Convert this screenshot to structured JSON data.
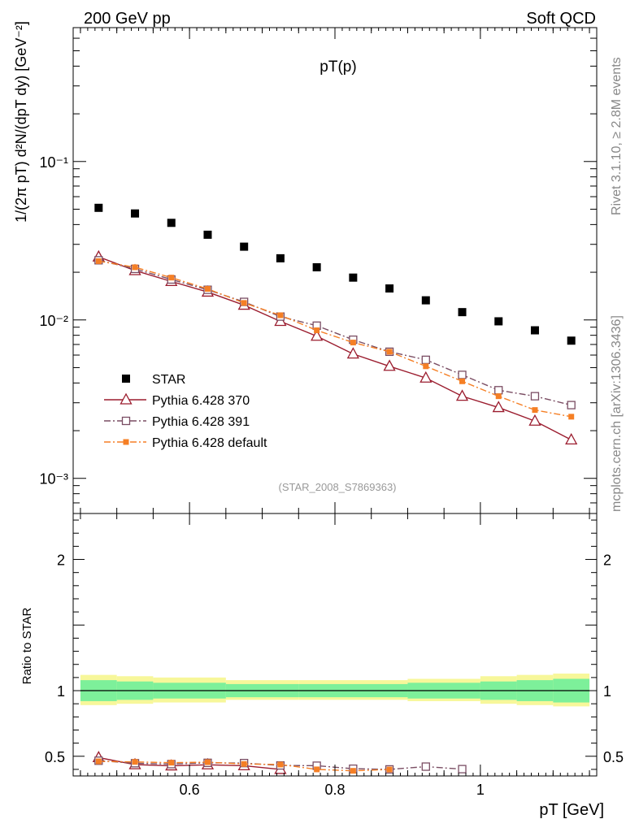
{
  "header": {
    "left": "200 GeV pp",
    "right": "Soft QCD"
  },
  "side": {
    "rivet": "Rivet 3.1.10, ≥ 2.8M events",
    "mcplots": "mcplots.cern.ch [arXiv:1306.3436]"
  },
  "colors": {
    "star": "#000000",
    "p370": "#9b1c2e",
    "p391": "#7a4d63",
    "pdef": "#f57f25",
    "band_inner": "#7df09a",
    "band_outer": "#f7f79a"
  },
  "chart_data": [
    {
      "type": "scatter",
      "title": "pT(p)",
      "annotation": "(STAR_2008_S7869363)",
      "ylabel": "1/(2π pT) d²N/(dpT dy) [GeV⁻²]",
      "xlabel": "pT [GeV]",
      "xlim": [
        0.44,
        1.16
      ],
      "ylim": [
        0.0006,
        0.7
      ],
      "yscale": "log",
      "ytick_labels": [
        "10⁻³",
        "10⁻²",
        "10⁻¹"
      ],
      "legend": "middle-left",
      "x": [
        0.475,
        0.525,
        0.575,
        0.625,
        0.675,
        0.725,
        0.775,
        0.825,
        0.875,
        0.925,
        0.975,
        1.025,
        1.075,
        1.125
      ],
      "series": [
        {
          "name": "STAR",
          "marker": "square-filled",
          "color_key": "star",
          "values": [
            0.051,
            0.047,
            0.041,
            0.0345,
            0.029,
            0.0245,
            0.0215,
            0.0185,
            0.0158,
            0.0133,
            0.0112,
            0.0098,
            0.0086,
            0.0074
          ]
        },
        {
          "name": "Pythia 6.428 370",
          "marker": "triangle-open",
          "line": "solid",
          "color_key": "p370",
          "values": [
            0.025,
            0.0205,
            0.0175,
            0.015,
            0.0124,
            0.0098,
            0.0079,
            0.0061,
            0.0051,
            0.0043,
            0.0033,
            0.0028,
            0.0023,
            0.00175
          ]
        },
        {
          "name": "Pythia 6.428 391",
          "marker": "square-open",
          "line": "dashdot",
          "color_key": "p391",
          "values": [
            0.0238,
            0.021,
            0.018,
            0.0155,
            0.013,
            0.0105,
            0.0092,
            0.0075,
            0.0063,
            0.0056,
            0.0045,
            0.0036,
            0.0033,
            0.0029
          ]
        },
        {
          "name": "Pythia 6.428 default",
          "marker": "square-filled-small",
          "line": "dashdot",
          "color_key": "pdef",
          "values": [
            0.0235,
            0.0215,
            0.0185,
            0.0157,
            0.0128,
            0.0107,
            0.0086,
            0.0072,
            0.0063,
            0.0051,
            0.0041,
            0.0033,
            0.0027,
            0.00245
          ]
        }
      ]
    },
    {
      "type": "line",
      "ylabel": "Ratio to STAR",
      "xlabel": "pT [GeV]",
      "xlim": [
        0.44,
        1.16
      ],
      "ylim": [
        0.35,
        2.35
      ],
      "ytick_labels": [
        "0.5",
        "1",
        "2"
      ],
      "xtick_labels": [
        "0.6",
        "0.8",
        "1"
      ],
      "band_inner": [
        [
          0.45,
          0.5,
          0.92,
          1.08
        ],
        [
          0.5,
          0.55,
          0.93,
          1.07
        ],
        [
          0.55,
          0.65,
          0.94,
          1.06
        ],
        [
          0.65,
          0.75,
          0.95,
          1.05
        ],
        [
          0.75,
          0.9,
          0.95,
          1.05
        ],
        [
          0.9,
          1.0,
          0.94,
          1.06
        ],
        [
          1.0,
          1.05,
          0.93,
          1.07
        ],
        [
          1.05,
          1.1,
          0.92,
          1.08
        ],
        [
          1.1,
          1.15,
          0.91,
          1.09
        ]
      ],
      "band_outer": [
        [
          0.45,
          0.5,
          0.89,
          1.12
        ],
        [
          0.5,
          0.55,
          0.9,
          1.11
        ],
        [
          0.55,
          0.65,
          0.91,
          1.1
        ],
        [
          0.65,
          0.75,
          0.93,
          1.08
        ],
        [
          0.75,
          0.9,
          0.93,
          1.08
        ],
        [
          0.9,
          1.0,
          0.92,
          1.09
        ],
        [
          1.0,
          1.05,
          0.9,
          1.11
        ],
        [
          1.05,
          1.1,
          0.89,
          1.12
        ],
        [
          1.1,
          1.15,
          0.88,
          1.13
        ]
      ],
      "series": [
        {
          "name": "Pythia 6.428 370",
          "marker": "triangle-open",
          "line": "solid",
          "color_key": "p370",
          "x": [
            0.475,
            0.525,
            0.575,
            0.625,
            0.675,
            0.725
          ],
          "values": [
            0.49,
            0.436,
            0.427,
            0.435,
            0.428,
            0.4
          ]
        },
        {
          "name": "Pythia 6.428 391",
          "marker": "square-open",
          "line": "dashdot",
          "color_key": "p391",
          "x": [
            0.475,
            0.525,
            0.575,
            0.625,
            0.675,
            0.725,
            0.775,
            0.825,
            0.875,
            0.925,
            0.975
          ],
          "values": [
            0.466,
            0.447,
            0.44,
            0.45,
            0.448,
            0.43,
            0.428,
            0.405,
            0.4,
            0.421,
            0.402
          ]
        },
        {
          "name": "Pythia 6.428 default",
          "marker": "square-filled-small",
          "line": "dashdot",
          "color_key": "pdef",
          "x": [
            0.475,
            0.525,
            0.575,
            0.625,
            0.675,
            0.725,
            0.775,
            0.825,
            0.875
          ],
          "values": [
            0.461,
            0.457,
            0.451,
            0.455,
            0.441,
            0.437,
            0.4,
            0.389,
            0.399
          ]
        }
      ]
    }
  ]
}
